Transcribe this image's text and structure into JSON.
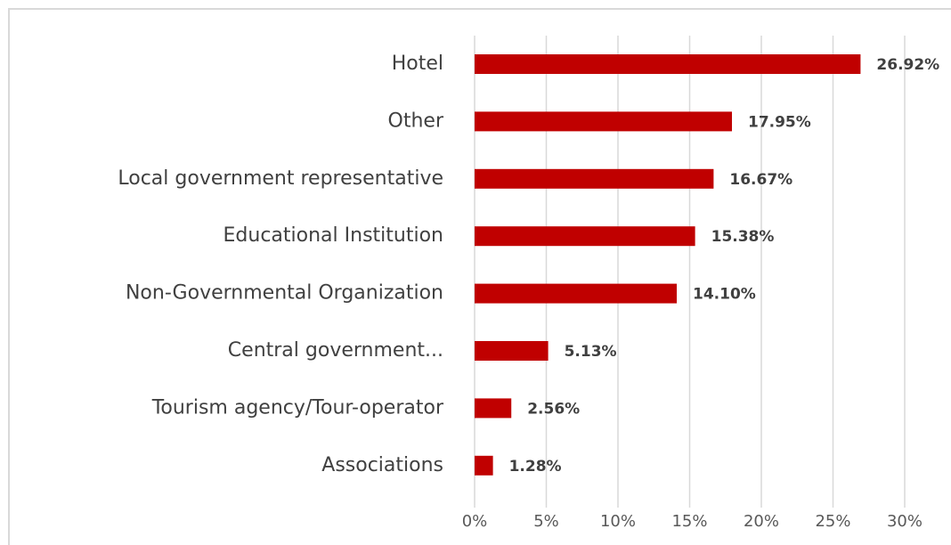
{
  "chart_data": {
    "type": "bar",
    "orientation": "horizontal",
    "categories": [
      "Hotel",
      "Other",
      "Local government representative",
      "Educational Institution",
      "Non-Governmental Organization",
      "Central government...",
      "Tourism agency/Tour-operator",
      "Associations"
    ],
    "values": [
      26.92,
      17.95,
      16.67,
      15.38,
      14.1,
      5.13,
      2.56,
      1.28
    ],
    "value_labels": [
      "26.92%",
      "17.95%",
      "16.67%",
      "15.38%",
      "14.10%",
      "5.13%",
      "2.56%",
      "1.28%"
    ],
    "color": "#c00000",
    "xlim": [
      0,
      30
    ],
    "xticks": [
      {
        "value": 0,
        "label": "0%"
      },
      {
        "value": 5,
        "label": "5%"
      },
      {
        "value": 10,
        "label": "10%"
      },
      {
        "value": 15,
        "label": "15%"
      },
      {
        "value": 20,
        "label": "20%"
      },
      {
        "value": 25,
        "label": "25%"
      },
      {
        "value": 30,
        "label": "30%"
      }
    ],
    "grid": true
  }
}
